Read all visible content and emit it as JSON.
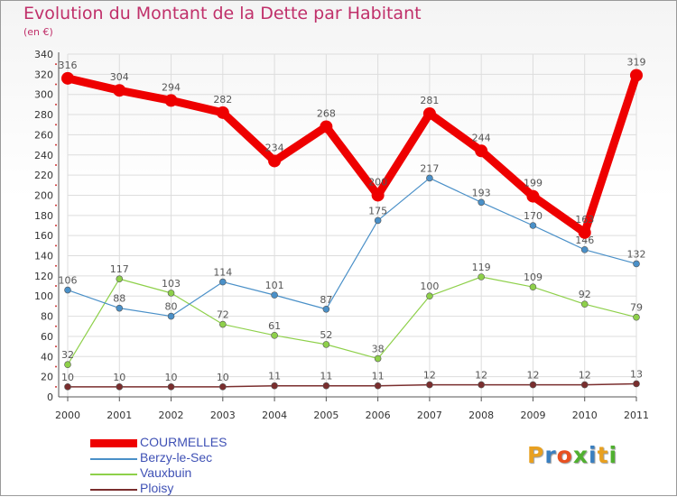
{
  "title": "Evolution du Montant de la Dette par Habitant",
  "subtitle": "(en €)",
  "logo_text": "Proxiti",
  "colors": {
    "title": "#c0306a",
    "grid": "#dddddd",
    "axis": "#555555",
    "COURMELLES": "#ee0000",
    "Berzy-le-Sec": "#4a90c8",
    "Vauxbuin": "#8ed04a",
    "Ploisy": "#7a2e2e",
    "logo": [
      "#e8a020",
      "#3a7fc0",
      "#e85020",
      "#50b030",
      "#3a7fc0",
      "#e8a020",
      "#50b030"
    ]
  },
  "chart_data": {
    "type": "line",
    "title": "Evolution du Montant de la Dette par Habitant",
    "ylabel": "(en €)",
    "xlabel": "",
    "x": [
      "2000",
      "2001",
      "2002",
      "2003",
      "2004",
      "2005",
      "2006",
      "2007",
      "2008",
      "2009",
      "2010",
      "2011"
    ],
    "ylim": [
      0,
      340
    ],
    "yticks": [
      0,
      20,
      40,
      60,
      80,
      100,
      120,
      140,
      160,
      180,
      200,
      220,
      240,
      260,
      280,
      300,
      320,
      340
    ],
    "grid": true,
    "legend": "bottom-left",
    "series": [
      {
        "name": "COURMELLES",
        "values": [
          316,
          304,
          294,
          282,
          234,
          268,
          200,
          281,
          244,
          199,
          163,
          319
        ],
        "labels": [
          "316",
          "304",
          "294",
          "282",
          "234",
          "268",
          "200",
          "281",
          "244",
          "199",
          "163",
          "319"
        ]
      },
      {
        "name": "Berzy-le-Sec",
        "values": [
          106,
          88,
          80,
          114,
          101,
          87,
          175,
          217,
          193,
          170,
          146,
          132
        ],
        "labels": [
          "106",
          "88",
          "80",
          "114",
          "101",
          "87",
          "175",
          "217",
          "193",
          "170",
          "146",
          "132"
        ]
      },
      {
        "name": "Vauxbuin",
        "values": [
          32,
          117,
          103,
          72,
          61,
          52,
          38,
          100,
          119,
          109,
          92,
          79
        ],
        "labels": [
          "32",
          "117",
          "103",
          "72",
          "61",
          "52",
          "38",
          "100",
          "119",
          "109",
          "92",
          "79"
        ]
      },
      {
        "name": "Ploisy",
        "values": [
          10,
          10,
          10,
          10,
          11,
          11,
          11,
          12,
          12,
          12,
          12,
          13
        ],
        "labels": [
          "10",
          "10",
          "10",
          "10",
          "11",
          "11",
          "11",
          "12",
          "12",
          "12",
          "12",
          "13"
        ]
      }
    ]
  }
}
